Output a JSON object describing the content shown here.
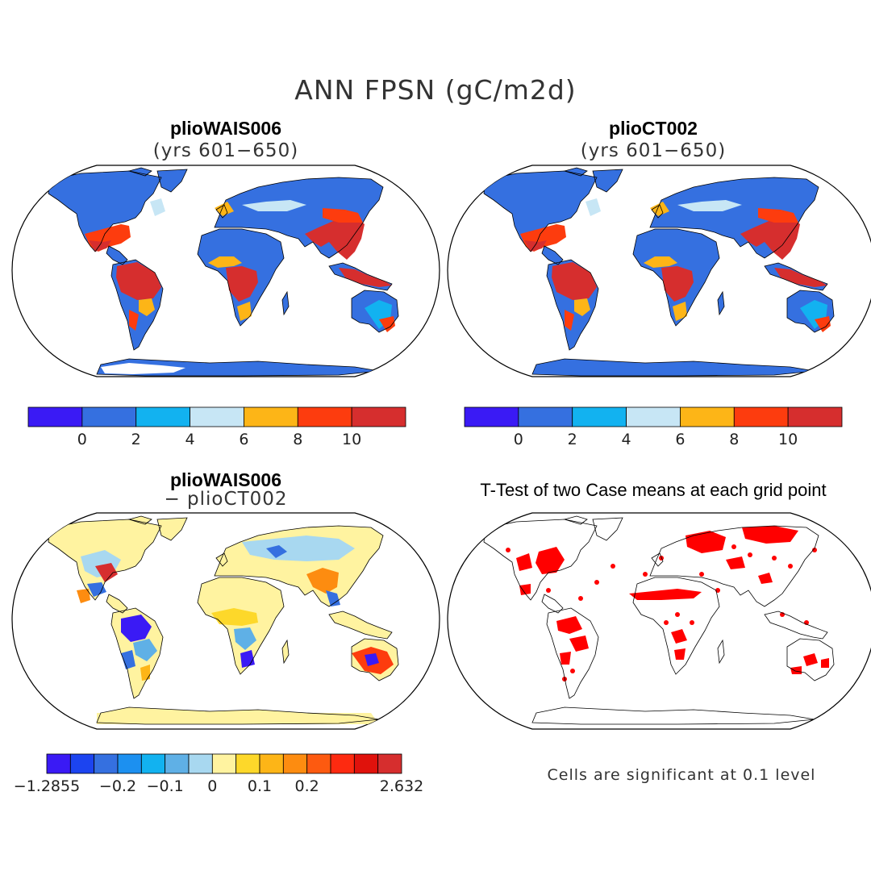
{
  "figure": {
    "title": "ANN FPSN (gC/m2d)",
    "note": "Cells are significant at 0.1 level"
  },
  "panels": {
    "top_left": {
      "title": "plioWAIS006",
      "subtitle": "(yrs 601−650)"
    },
    "top_right": {
      "title": "plioCT002",
      "subtitle": "(yrs 601−650)"
    },
    "bottom_left": {
      "title": "plioWAIS006",
      "subtitle": "− plioCT002"
    },
    "bottom_right": {
      "title": "T-Test of two Case means at each grid point"
    }
  },
  "chart_data": [
    {
      "type": "heatmap",
      "title": "plioWAIS006 (yrs 601−650)",
      "colorbar": {
        "ticks": [
          "0",
          "2",
          "4",
          "6",
          "8",
          "10"
        ],
        "bins": [
          null,
          0,
          2,
          4,
          6,
          8,
          10,
          null
        ],
        "colors": [
          "#3a1af5",
          "#3570e0",
          "#12b2f0",
          "#c7e6f5",
          "#fdb517",
          "#fd3c0e",
          "#d62e2e"
        ]
      }
    },
    {
      "type": "heatmap",
      "title": "plioCT002 (yrs 601−650)",
      "colorbar": {
        "ticks": [
          "0",
          "2",
          "4",
          "6",
          "8",
          "10"
        ],
        "bins": [
          null,
          0,
          2,
          4,
          6,
          8,
          10,
          null
        ],
        "colors": [
          "#3a1af5",
          "#3570e0",
          "#12b2f0",
          "#c7e6f5",
          "#fdb517",
          "#fd3c0e",
          "#d62e2e"
        ]
      }
    },
    {
      "type": "heatmap",
      "title": "plioWAIS006 − plioCT002",
      "colorbar": {
        "ticks": [
          "−1.2855",
          "−0.2",
          "−0.1",
          "0",
          "0.1",
          "0.2",
          "2.632"
        ],
        "min": -1.2855,
        "max": 2.632,
        "colors": [
          "#3a1af5",
          "#1c44f0",
          "#3570e0",
          "#1c90f0",
          "#12b2f0",
          "#5fb0e6",
          "#a8d8f0",
          "#fff3a0",
          "#fdd82a",
          "#fdb517",
          "#fd8c10",
          "#fd5a10",
          "#fd2a10",
          "#e0120c",
          "#d62e2e"
        ]
      }
    },
    {
      "type": "heatmap",
      "title": "T-Test of two Case means at each grid point",
      "legend": "Cells are significant at 0.1 level",
      "colors": [
        "#ff0000"
      ]
    }
  ]
}
